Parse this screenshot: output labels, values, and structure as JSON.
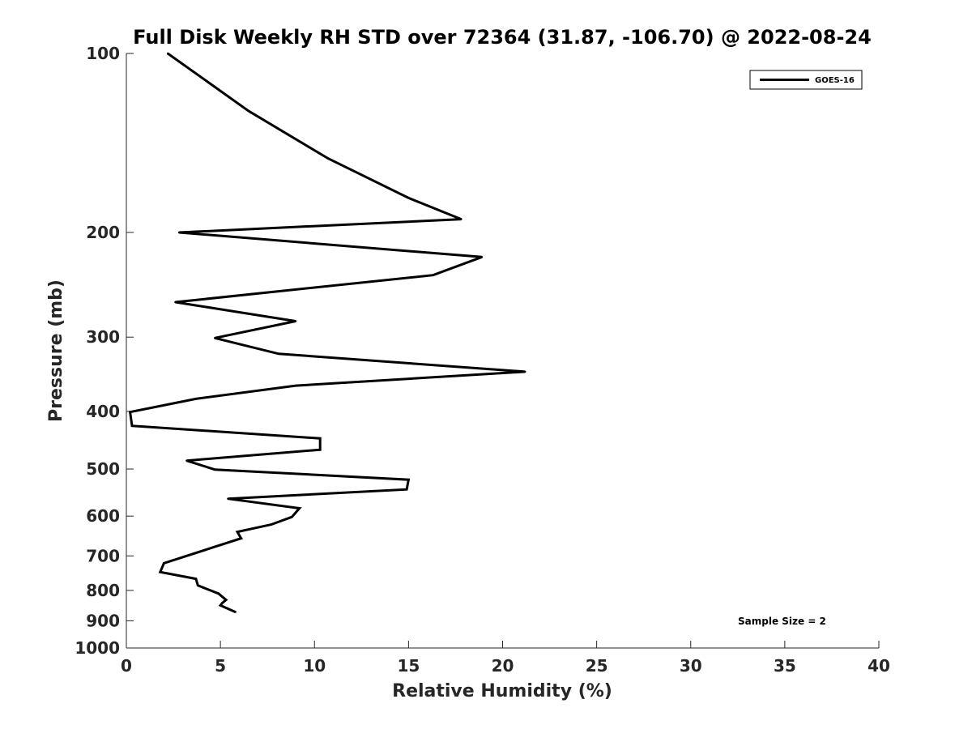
{
  "chart_data": {
    "type": "line",
    "title": "Full Disk Weekly RH STD over 72364 (31.87, -106.70) @ 2022-08-24",
    "xlabel": "Relative Humidity (%)",
    "ylabel": "Pressure (mb)",
    "xlim": [
      0,
      40
    ],
    "ylim": [
      100,
      1000
    ],
    "yscale": "log",
    "y_reversed": true,
    "xticks": [
      0,
      5,
      10,
      15,
      20,
      25,
      30,
      35,
      40
    ],
    "yticks": [
      100,
      200,
      300,
      400,
      500,
      600,
      700,
      800,
      900,
      1000
    ],
    "grid": false,
    "legend_position": "top-right",
    "annotation": "Sample Size = 2",
    "series": [
      {
        "name": "GOES-16",
        "color": "#000000",
        "points": [
          [
            2.2,
            100
          ],
          [
            6.5,
            125
          ],
          [
            10.7,
            150
          ],
          [
            15.0,
            175
          ],
          [
            17.8,
            190
          ],
          [
            2.8,
            200
          ],
          [
            18.9,
            220
          ],
          [
            16.3,
            236
          ],
          [
            2.6,
            262
          ],
          [
            9.0,
            282
          ],
          [
            4.7,
            301
          ],
          [
            8.1,
            320
          ],
          [
            21.2,
            343
          ],
          [
            9.0,
            362
          ],
          [
            3.7,
            381
          ],
          [
            0.2,
            401
          ],
          [
            0.3,
            423
          ],
          [
            10.3,
            444
          ],
          [
            10.3,
            464
          ],
          [
            3.2,
            484
          ],
          [
            4.7,
            501
          ],
          [
            15.0,
            521
          ],
          [
            14.9,
            541
          ],
          [
            5.4,
            561
          ],
          [
            9.2,
            582
          ],
          [
            8.8,
            602
          ],
          [
            7.7,
            620
          ],
          [
            5.9,
            638
          ],
          [
            6.1,
            654
          ],
          [
            4.5,
            679
          ],
          [
            2.0,
            720
          ],
          [
            1.8,
            745
          ],
          [
            3.7,
            765
          ],
          [
            3.8,
            785
          ],
          [
            4.9,
            810
          ],
          [
            5.3,
            830
          ],
          [
            5.1,
            840
          ],
          [
            5.0,
            848
          ],
          [
            5.8,
            870
          ]
        ]
      }
    ]
  }
}
